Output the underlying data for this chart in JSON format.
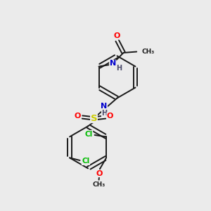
{
  "background_color": "#ebebeb",
  "bond_color": "#1a1a1a",
  "colors": {
    "O": "#ff0000",
    "N": "#0000cd",
    "S": "#cccc00",
    "Cl": "#00bb00",
    "C": "#1a1a1a",
    "H": "#4a4a6a"
  },
  "bg": "#ebebeb"
}
